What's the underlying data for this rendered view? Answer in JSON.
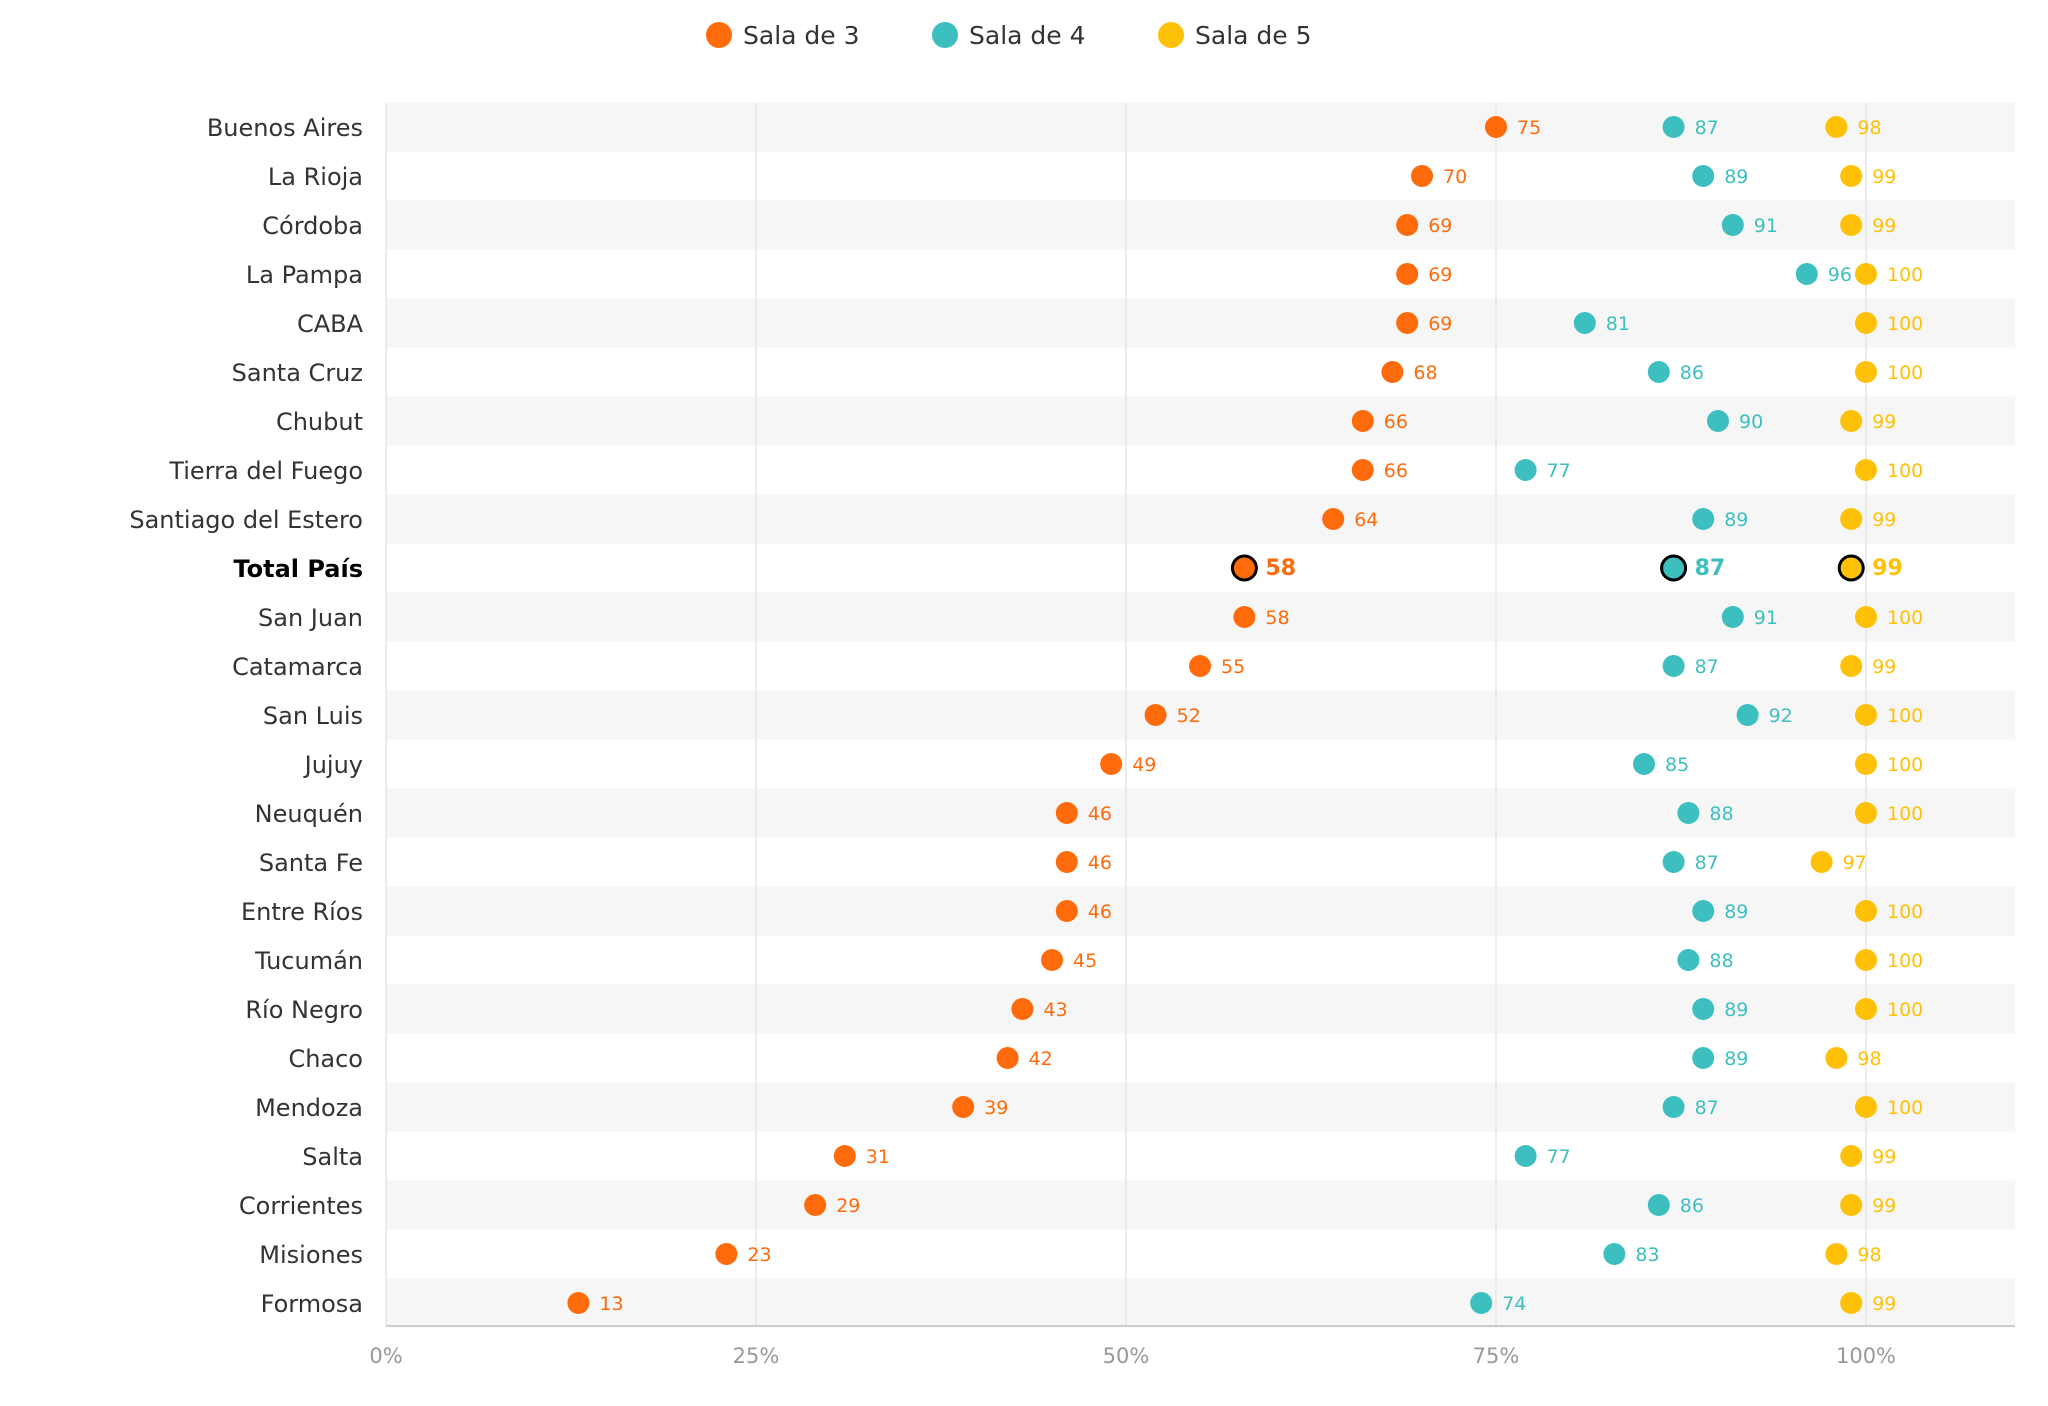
{
  "chart_data": {
    "type": "scatter",
    "orientation": "horizontal-dot-plot",
    "title": "",
    "xlabel": "",
    "ylabel": "",
    "xlim": [
      0,
      110
    ],
    "x_ticks": [
      0,
      25,
      50,
      75,
      100
    ],
    "x_tick_labels": [
      "0%",
      "25%",
      "50%",
      "75%",
      "100%"
    ],
    "legend_position": "top-center",
    "grid": true,
    "highlight_category": "Total País",
    "categories": [
      "Buenos Aires",
      "La Rioja",
      "Córdoba",
      "La Pampa",
      "CABA",
      "Santa Cruz",
      "Chubut",
      "Tierra del Fuego",
      "Santiago del Estero",
      "Total País",
      "San Juan",
      "Catamarca",
      "San Luis",
      "Jujuy",
      "Neuquén",
      "Santa Fe",
      "Entre Ríos",
      "Tucumán",
      "Río Negro",
      "Chaco",
      "Mendoza",
      "Salta",
      "Corrientes",
      "Misiones",
      "Formosa"
    ],
    "series": [
      {
        "name": "Sala de 3",
        "color": "#FF6B0B",
        "values": [
          75,
          70,
          69,
          69,
          69,
          68,
          66,
          66,
          64,
          58,
          58,
          55,
          52,
          49,
          46,
          46,
          46,
          45,
          43,
          42,
          39,
          31,
          29,
          23,
          13
        ]
      },
      {
        "name": "Sala de 4",
        "color": "#3DBFBF",
        "values": [
          87,
          89,
          91,
          96,
          81,
          86,
          90,
          77,
          89,
          87,
          91,
          87,
          92,
          85,
          88,
          87,
          89,
          88,
          89,
          89,
          87,
          77,
          86,
          83,
          74
        ]
      },
      {
        "name": "Sala de 5",
        "color": "#FFC107",
        "values": [
          98,
          99,
          99,
          100,
          100,
          100,
          99,
          100,
          99,
          99,
          100,
          99,
          100,
          100,
          100,
          97,
          100,
          100,
          100,
          98,
          100,
          99,
          99,
          98,
          99
        ]
      }
    ]
  }
}
